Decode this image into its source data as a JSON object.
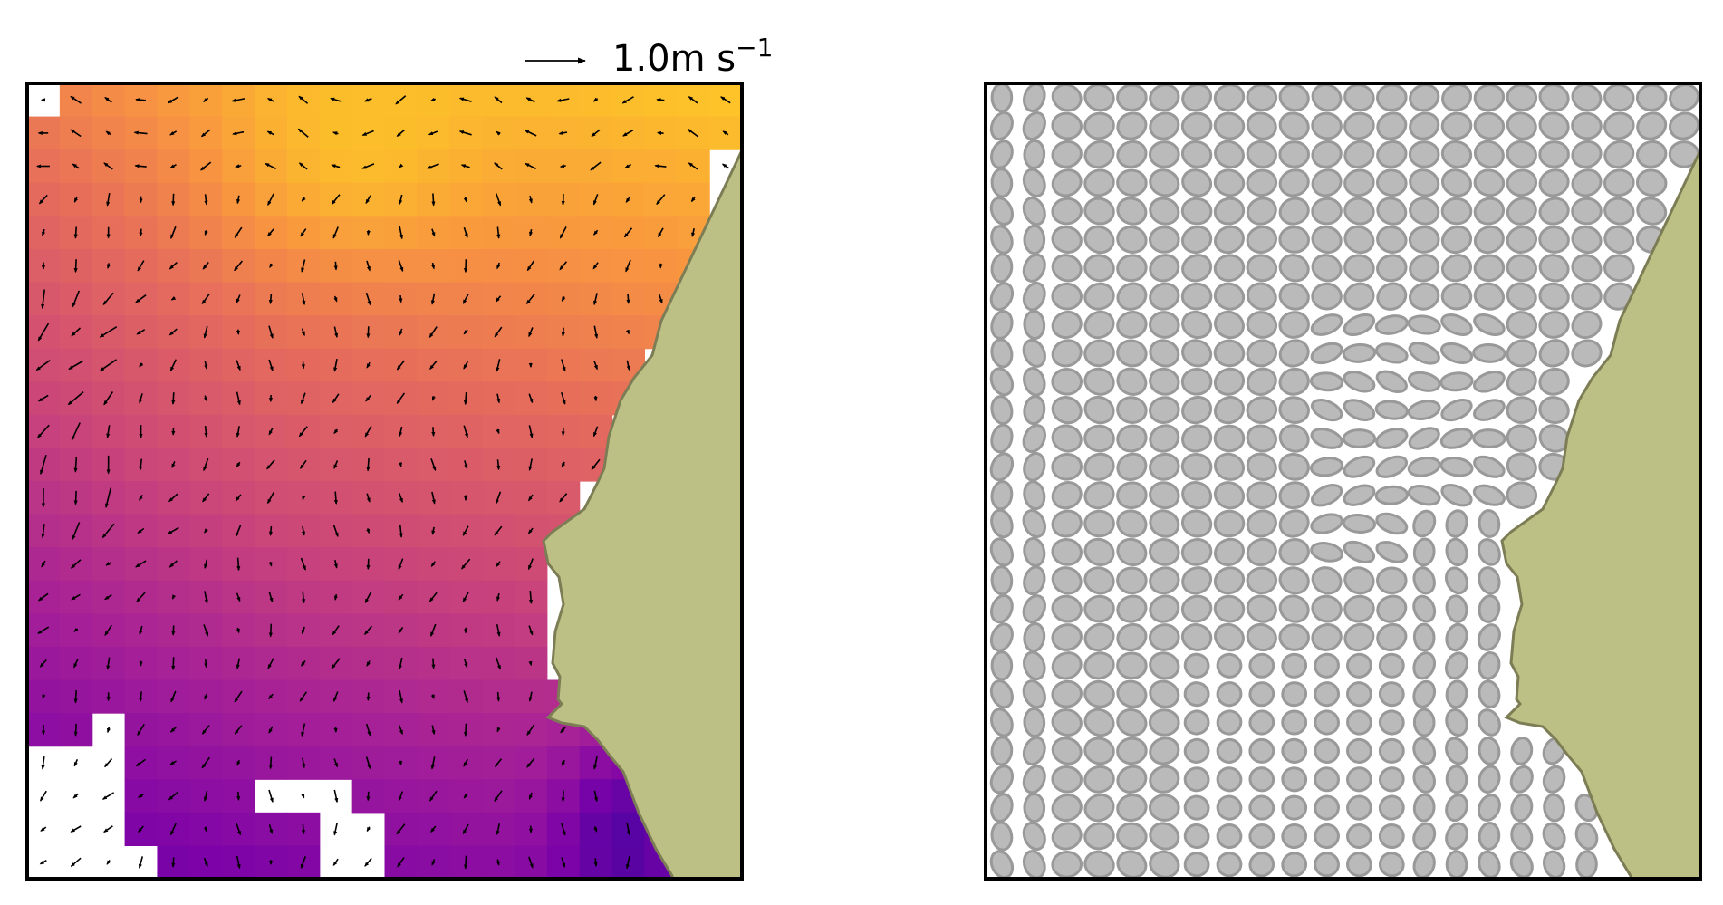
{
  "chart_data": [
    {
      "type": "heatmap",
      "title": "",
      "xlabel": "",
      "ylabel": "",
      "grid": false,
      "colormap": "plasma",
      "vector_field": true,
      "quiver_key": {
        "value": 1.0,
        "label": "1.0m s",
        "exponent": "−1"
      },
      "land_color": "#bdc084",
      "coastline_color": "#7d7d55",
      "missing_color": "#ffffff"
    },
    {
      "type": "scatter",
      "title": "",
      "xlabel": "",
      "ylabel": "",
      "grid": false,
      "marker": "ellipse",
      "marker_color": "#bababa",
      "marker_edge_color": "#999999",
      "land_color": "#bdc084",
      "coastline_color": "#7d7d55"
    }
  ]
}
